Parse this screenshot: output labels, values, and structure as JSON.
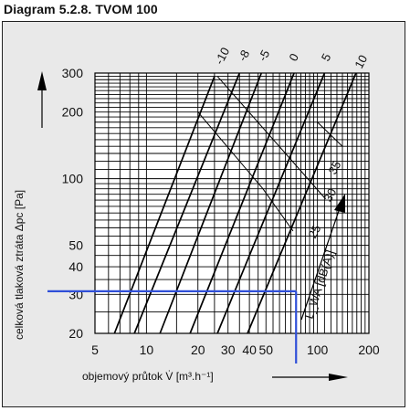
{
  "title": "Diagram 5.2.8.  TVOM 100",
  "chart_data": {
    "type": "line",
    "scale": "log-log",
    "xlabel": "objemový průtok V̇ [m³.h⁻¹]",
    "ylabel": "celková tlaková ztráta Δpc [Pa]",
    "xlim": [
      5,
      200
    ],
    "ylim": [
      20,
      300
    ],
    "x_ticks": [
      5,
      10,
      20,
      30,
      40,
      50,
      100,
      200
    ],
    "y_ticks": [
      20,
      30,
      40,
      50,
      100,
      200,
      300
    ],
    "series": [
      {
        "name": "-10",
        "points": [
          [
            6.5,
            20
          ],
          [
            25,
            290
          ]
        ]
      },
      {
        "name": "-8",
        "points": [
          [
            8.5,
            20
          ],
          [
            35,
            300
          ]
        ]
      },
      {
        "name": "-5",
        "points": [
          [
            12,
            20
          ],
          [
            47,
            300
          ]
        ]
      },
      {
        "name": "0",
        "points": [
          [
            18,
            20
          ],
          [
            73,
            300
          ]
        ]
      },
      {
        "name": "5",
        "points": [
          [
            26,
            20
          ],
          [
            110,
            300
          ]
        ]
      },
      {
        "name": "10",
        "points": [
          [
            39,
            20
          ],
          [
            168,
            300
          ]
        ]
      }
    ],
    "noise_lines": [
      {
        "name": "25",
        "points": [
          [
            20,
            200
          ],
          [
            48,
            90
          ],
          [
            72,
            58
          ]
        ]
      },
      {
        "name": "30",
        "points": [
          [
            26,
            290
          ],
          [
            68,
            125
          ],
          [
            110,
            82
          ]
        ]
      },
      {
        "name": "35",
        "points": [
          [
            100,
            180
          ],
          [
            140,
            140
          ]
        ]
      }
    ],
    "noise_label": "L_WA [dB(A)]",
    "highlight": {
      "x": 75,
      "y": 31
    }
  }
}
